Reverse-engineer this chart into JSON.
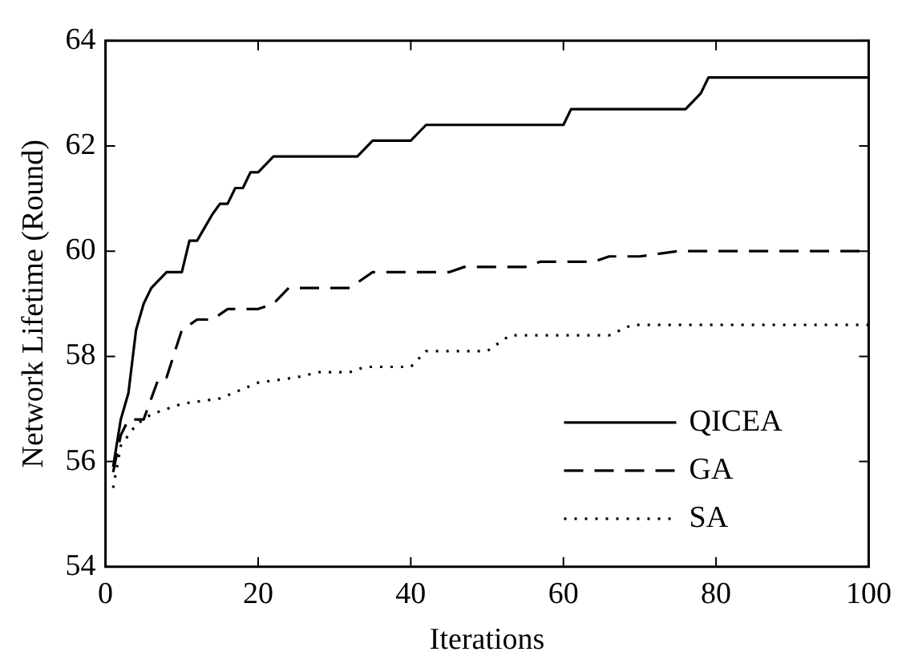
{
  "chart_data": {
    "type": "line",
    "xlabel": "Iterations",
    "ylabel": "Network Lifetime (Round)",
    "xlim": [
      0,
      100
    ],
    "xticks": [
      0,
      20,
      40,
      60,
      80,
      100
    ],
    "ylim": [
      54,
      64
    ],
    "yticks": [
      54,
      56,
      58,
      60,
      62,
      64
    ],
    "grid": false,
    "legend": "bottom right",
    "marker": "none",
    "series": [
      {
        "name": "QICEA",
        "color": "#000000",
        "line_style": "solid",
        "x": [
          1,
          2,
          3,
          4,
          5,
          6,
          8,
          10,
          11,
          12,
          14,
          15,
          16,
          17,
          18,
          19,
          20,
          22,
          33,
          35,
          40,
          42,
          60,
          61,
          76,
          78,
          79,
          100
        ],
        "values": [
          55.9,
          56.8,
          57.3,
          58.5,
          59.0,
          59.3,
          59.6,
          59.6,
          60.2,
          60.2,
          60.7,
          60.9,
          60.9,
          61.2,
          61.2,
          61.5,
          61.5,
          61.8,
          61.8,
          62.1,
          62.1,
          62.4,
          62.4,
          62.7,
          62.7,
          63.0,
          63.3,
          63.3
        ]
      },
      {
        "name": "GA",
        "color": "#000000",
        "line_style": "dashed",
        "x": [
          1,
          2,
          3,
          5,
          6,
          7,
          8,
          10,
          12,
          14,
          16,
          20,
          22,
          24,
          32,
          35,
          45,
          47,
          55,
          57,
          64,
          66,
          70,
          75,
          100
        ],
        "values": [
          55.8,
          56.5,
          56.8,
          56.8,
          57.2,
          57.6,
          57.6,
          58.5,
          58.7,
          58.7,
          58.9,
          58.9,
          59.0,
          59.3,
          59.3,
          59.6,
          59.6,
          59.7,
          59.7,
          59.8,
          59.8,
          59.9,
          59.9,
          60.0,
          60.0
        ]
      },
      {
        "name": "SA",
        "color": "#000000",
        "line_style": "dotted",
        "x": [
          1,
          2,
          4,
          6,
          10,
          15,
          20,
          25,
          28,
          32,
          34,
          40,
          42,
          50,
          53,
          66,
          69,
          100
        ],
        "values": [
          55.5,
          56.3,
          56.7,
          56.9,
          57.1,
          57.2,
          57.5,
          57.6,
          57.7,
          57.7,
          57.8,
          57.8,
          58.1,
          58.1,
          58.4,
          58.4,
          58.6,
          58.6
        ]
      }
    ]
  }
}
